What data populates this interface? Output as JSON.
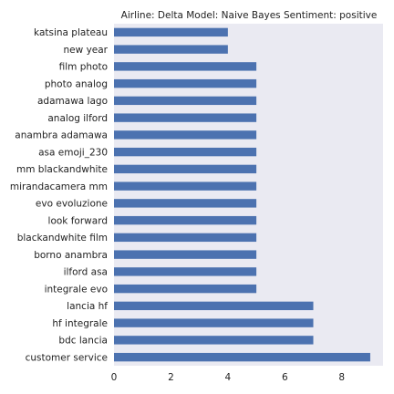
{
  "chart_data": {
    "type": "bar",
    "orientation": "horizontal",
    "title": "Airline: Delta Model: Naive Bayes Sentiment: positive",
    "xlabel": "",
    "ylabel": "",
    "categories": [
      "katsina plateau",
      "new year",
      "film photo",
      "photo analog",
      "adamawa lago",
      "analog ilford",
      "anambra adamawa",
      "asa emoji_230",
      "mm blackandwhite",
      "mirandacamera mm",
      "evo evoluzione",
      "look forward",
      "blackandwhite film",
      "borno anambra",
      "ilford asa",
      "integrale evo",
      "lancia hf",
      "hf integrale",
      "bdc lancia",
      "customer service"
    ],
    "values": [
      4,
      4,
      5,
      5,
      5,
      5,
      5,
      5,
      5,
      5,
      5,
      5,
      5,
      5,
      5,
      5,
      7,
      7,
      7,
      9
    ],
    "xlim": [
      0,
      9.45
    ],
    "xticks": [
      0,
      2,
      4,
      6,
      8
    ],
    "grid": false,
    "colors": {
      "bar": "#4c72b0",
      "plot_background": "#eaeaf2",
      "text": "#222222"
    }
  }
}
